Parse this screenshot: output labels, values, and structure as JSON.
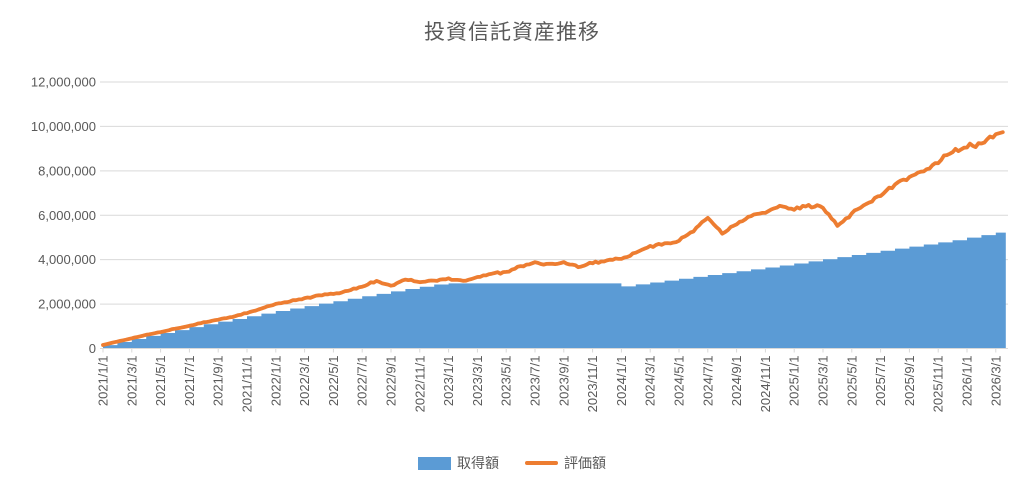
{
  "page": {
    "background": "#FFFFFF"
  },
  "colors": {
    "title_text": "#595959",
    "axis_text": "#595959",
    "gridline": "#D9D9D9",
    "axis_line": "#D9D9D9",
    "area_blue": "#5B9BD5",
    "line_orange": "#ED7D31"
  },
  "legend": {
    "items": [
      {
        "label": "取得額",
        "color": "#5B9BD5",
        "swatch": "rect"
      },
      {
        "label": "評価額",
        "color": "#ED7D31",
        "swatch": "line"
      }
    ]
  },
  "chart_data": {
    "type": "area-line-combo",
    "title": "投資信託資産推移",
    "xlabel": "",
    "ylabel": "",
    "ylim": [
      0,
      12000000
    ],
    "y_tick_values": [
      0,
      2000000,
      4000000,
      6000000,
      8000000,
      10000000,
      12000000
    ],
    "y_tick_labels": [
      "0",
      "2,000,000",
      "4,000,000",
      "6,000,000",
      "8,000,000",
      "10,000,000",
      "12,000,000"
    ],
    "x_start": "2021/1/1",
    "x_interval": "monthly",
    "x_tick_labels": [
      "2021/1/1",
      "2021/3/1",
      "2021/5/1",
      "2021/7/1",
      "2021/9/1",
      "2021/11/1",
      "2022/1/1",
      "2022/3/1",
      "2022/5/1",
      "2022/7/1",
      "2022/9/1",
      "2022/11/1",
      "2023/1/1",
      "2023/3/1",
      "2023/5/1",
      "2023/7/1",
      "2023/9/1",
      "2023/11/1",
      "2024/1/1",
      "2024/3/1",
      "2024/5/1",
      "2024/7/1",
      "2024/9/1",
      "2024/11/1",
      "2025/1/1",
      "2025/3/1",
      "2025/5/1",
      "2025/7/1",
      "2025/9/1",
      "2025/11/1",
      "2026/1/1",
      "2026/3/1"
    ],
    "grid": true,
    "legend_position": "bottom",
    "series": [
      {
        "name": "取得額",
        "type": "area-step",
        "color": "#5B9BD5",
        "values": [
          150000,
          290000,
          430000,
          570000,
          700000,
          830000,
          960000,
          1090000,
          1210000,
          1330000,
          1450000,
          1570000,
          1690000,
          1800000,
          1910000,
          2020000,
          2130000,
          2240000,
          2350000,
          2460000,
          2570000,
          2680000,
          2780000,
          2880000,
          2930000,
          2930000,
          2930000,
          2930000,
          2930000,
          2930000,
          2930000,
          2930000,
          2930000,
          2930000,
          2930000,
          2930000,
          2800000,
          2885000,
          2970000,
          3055000,
          3140000,
          3225000,
          3310000,
          3395000,
          3480000,
          3565000,
          3650000,
          3735000,
          3830000,
          3925000,
          4020000,
          4115000,
          4210000,
          4305000,
          4400000,
          4495000,
          4590000,
          4685000,
          4780000,
          4875000,
          4990000,
          5105000,
          5220000
        ]
      },
      {
        "name": "評価額",
        "type": "line",
        "color": "#ED7D31",
        "values": [
          160000,
          310000,
          460000,
          610000,
          740000,
          890000,
          1020000,
          1180000,
          1300000,
          1420000,
          1600000,
          1800000,
          2000000,
          2120000,
          2260000,
          2400000,
          2450000,
          2600000,
          2800000,
          3050000,
          2820000,
          3100000,
          3000000,
          3050000,
          3150000,
          3060000,
          3200000,
          3370000,
          3450000,
          3700000,
          3850000,
          3800000,
          3900000,
          3660000,
          3850000,
          3950000,
          4050000,
          4300000,
          4600000,
          4700000,
          4850000,
          5300000,
          5900000,
          5150000,
          5600000,
          6000000,
          6150000,
          6400000,
          6300000,
          6450000,
          6350000,
          5500000,
          6100000,
          6500000,
          6900000,
          7400000,
          7700000,
          8000000,
          8350000,
          8900000,
          9100000,
          9200000,
          9650000
        ]
      }
    ]
  }
}
